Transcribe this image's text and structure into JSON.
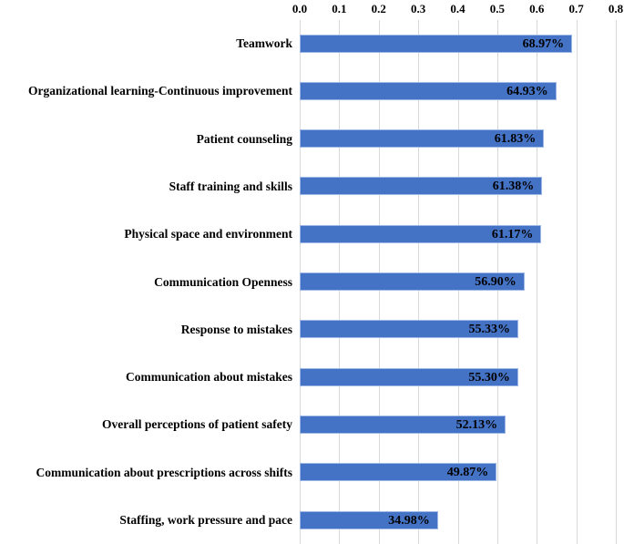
{
  "chart_data": {
    "type": "bar",
    "orientation": "horizontal",
    "title": "",
    "xlabel": "",
    "ylabel": "",
    "xlim": [
      0.0,
      0.8
    ],
    "x_ticks": [
      "0.0",
      "0.1",
      "0.2",
      "0.3",
      "0.4",
      "0.5",
      "0.6",
      "0.7",
      "0.8"
    ],
    "grid": "vertical",
    "legend": "none",
    "categories": [
      "Teamwork",
      "Organizational learning-Continuous improvement",
      "Patient counseling",
      "Staff training and skills",
      "Physical space and environment",
      "Communication Openness",
      "Response to mistakes",
      "Communication about mistakes",
      "Overall perceptions of patient safety",
      "Communication about prescriptions across shifts",
      "Staffing, work pressure and pace"
    ],
    "values": [
      0.6897,
      0.6493,
      0.6183,
      0.6138,
      0.6117,
      0.569,
      0.5533,
      0.553,
      0.5213,
      0.4987,
      0.3498
    ],
    "value_labels": [
      "68.97%",
      "64.93%",
      "61.83%",
      "61.38%",
      "61.17%",
      "56.90%",
      "55.33%",
      "55.30%",
      "52.13%",
      "49.87%",
      "34.98%"
    ],
    "colors": {
      "bar_fill": "#4472C4",
      "bar_border": "#9FB9E6",
      "gridline": "#D9D9D9",
      "text": "#000000",
      "background": "#FFFFFF"
    }
  }
}
